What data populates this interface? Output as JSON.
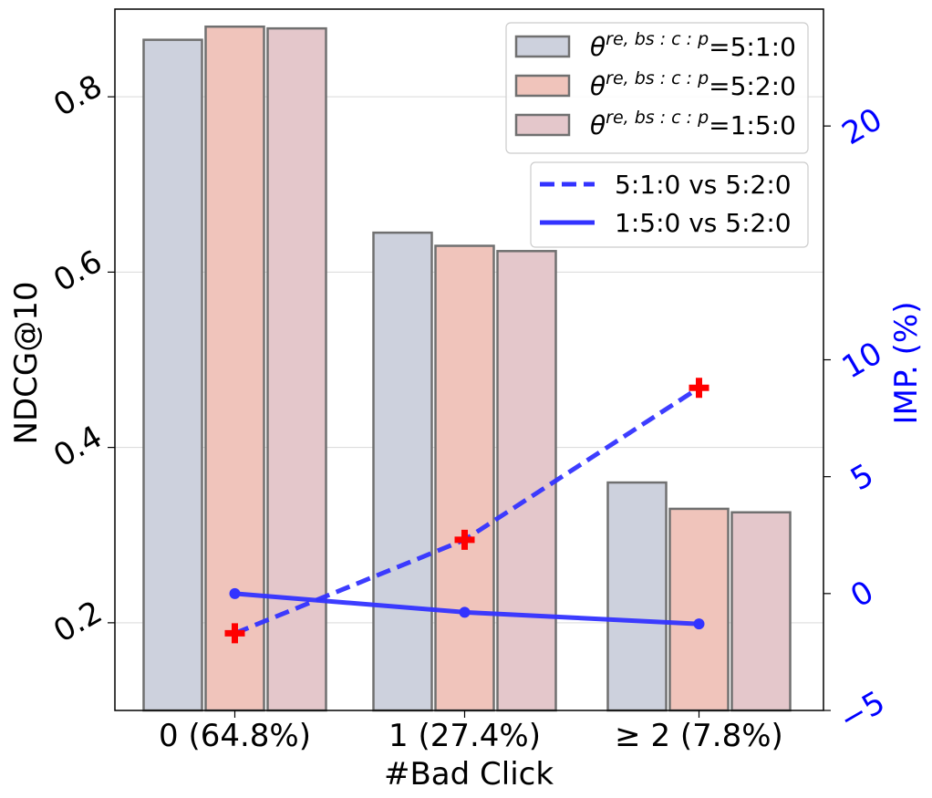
{
  "chart_data": {
    "type": "bar",
    "xlabel": "#Bad Click",
    "ylabel": "NDCG@10",
    "ylabel_right": "IMP. (%)",
    "categories": [
      "0 (64.8%)",
      "1 (27.4%)",
      "≥ 2 (7.8%)"
    ],
    "ylim": [
      0.1,
      0.9
    ],
    "yticks": [
      0.2,
      0.4,
      0.6,
      0.8
    ],
    "ytick_labels": [
      "0.2",
      "0.4",
      "0.6",
      "0.8"
    ],
    "ylim_right": [
      -5,
      25
    ],
    "yticks_right": [
      -5,
      0,
      5,
      10,
      20
    ],
    "ytick_labels_right": [
      "−5",
      "0",
      "5",
      "10",
      "20"
    ],
    "grid": true,
    "bar_series": [
      {
        "name": "5:1:0",
        "theta_base": "θ",
        "theta_sup": "re, bs : c : p",
        "theta_suffix": "=5:1:0",
        "color": "#cdd1dd",
        "values": [
          0.865,
          0.645,
          0.36
        ]
      },
      {
        "name": "5:2:0",
        "theta_base": "θ",
        "theta_sup": "re, bs : c : p",
        "theta_suffix": "=5:2:0",
        "color": "#f0c4bb",
        "values": [
          0.88,
          0.63,
          0.33
        ]
      },
      {
        "name": "1:5:0",
        "theta_base": "θ",
        "theta_sup": "re, bs : c : p",
        "theta_suffix": "=1:5:0",
        "color": "#e4c7cb",
        "values": [
          0.878,
          0.624,
          0.326
        ]
      }
    ],
    "line_series": [
      {
        "name": "5:1:0 vs 5:2:0",
        "style": "dashed",
        "marker": "plus",
        "color": "#3333ff",
        "marker_color": "#ff0000",
        "values": [
          -1.7,
          2.3,
          8.8
        ]
      },
      {
        "name": "1:5:0 vs 5:2:0",
        "style": "solid",
        "marker": "circle",
        "color": "#3333ff",
        "marker_color": "#3333ff",
        "values": [
          0.0,
          -0.8,
          -1.3
        ]
      }
    ],
    "legend_bars_position": "top-right",
    "legend_lines_position": "upper-right"
  }
}
